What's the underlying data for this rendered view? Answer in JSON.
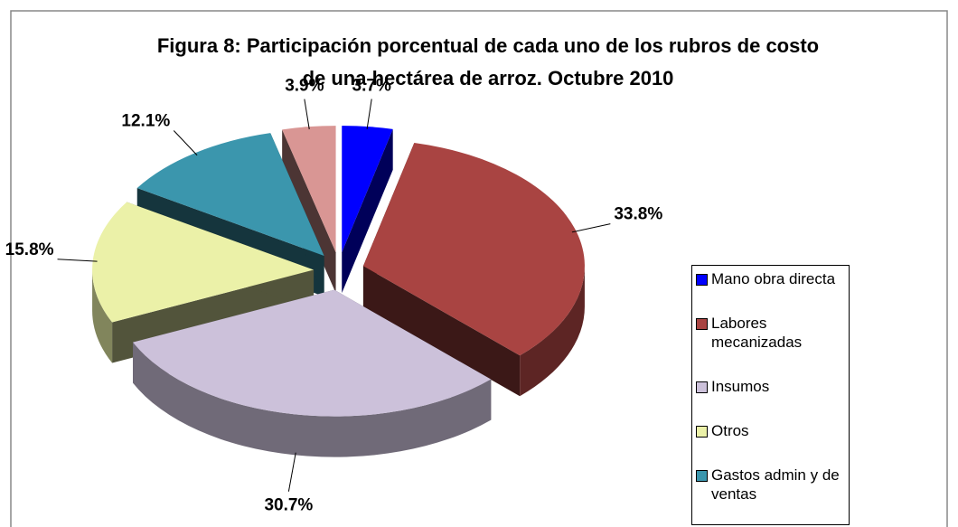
{
  "chart_data": {
    "type": "pie3d",
    "title": [
      "Figura 8: Participación porcentual de cada uno de los rubros de costo",
      "de una hectárea de arroz. Octubre 2010"
    ],
    "categories": [
      "Mano obra directa",
      "Labores mecanizadas",
      "Insumos",
      "Otros",
      "Gastos admin y de ventas",
      null
    ],
    "values": [
      3.7,
      33.8,
      30.7,
      15.8,
      12.1,
      3.9
    ],
    "value_labels": [
      "3.7%",
      "33.8%",
      "30.7%",
      "15.8%",
      "12.1%",
      "3.9%"
    ],
    "colors": [
      "#0000ff",
      "#a94442",
      "#ccc1da",
      "#ebf1a8",
      "#3b96ad",
      "#d99694"
    ],
    "legend": "right"
  }
}
